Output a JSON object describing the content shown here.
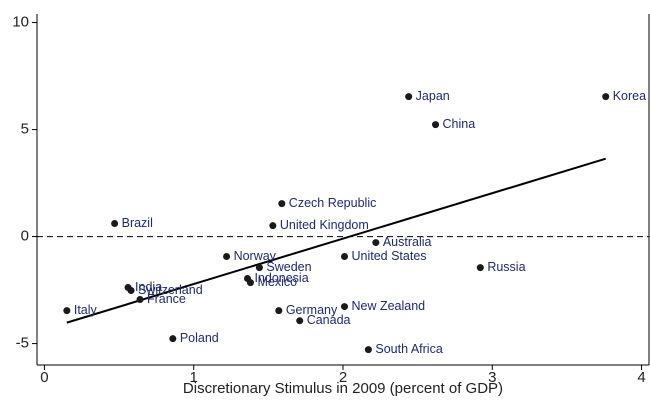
{
  "chart_data": {
    "type": "scatter",
    "xlabel": "Discretionary Stimulus in 2009 (percent of GDP)",
    "labels": [
      "Korea",
      "Japan",
      "China",
      "Czech Republic",
      "Brazil",
      "United Kingdom",
      "Australia",
      "Norway",
      "United States",
      "Sweden",
      "Russia",
      "Indonesia",
      "Mexico",
      "India",
      "Switzerland",
      "France",
      "Italy",
      "Germany",
      "New Zealand",
      "Canada",
      "Poland",
      "South Africa"
    ],
    "x": [
      3.76,
      2.44,
      2.62,
      1.59,
      0.47,
      1.53,
      2.22,
      1.22,
      2.01,
      1.44,
      2.92,
      1.36,
      1.38,
      0.56,
      0.58,
      0.64,
      0.15,
      1.57,
      2.01,
      1.71,
      0.86,
      2.17
    ],
    "values": [
      6.54,
      6.54,
      5.23,
      1.54,
      0.61,
      0.51,
      -0.28,
      -0.93,
      -0.93,
      -1.45,
      -1.45,
      -1.96,
      -2.15,
      -2.38,
      -2.52,
      -2.94,
      -3.46,
      -3.46,
      -3.27,
      -3.93,
      -4.77,
      -5.28
    ],
    "color": "#1a1a1a",
    "label_color": "#1f2a6e",
    "trendline": {
      "x": [
        0.15,
        3.76
      ],
      "y": [
        -4.02,
        3.64
      ]
    },
    "hline": 0,
    "xlim": [
      -0.05,
      4.05
    ],
    "ylim": [
      -6,
      10.4
    ],
    "xticks": [
      0,
      1,
      2,
      3,
      4
    ],
    "yticks": [
      -5,
      0,
      5,
      10
    ]
  }
}
